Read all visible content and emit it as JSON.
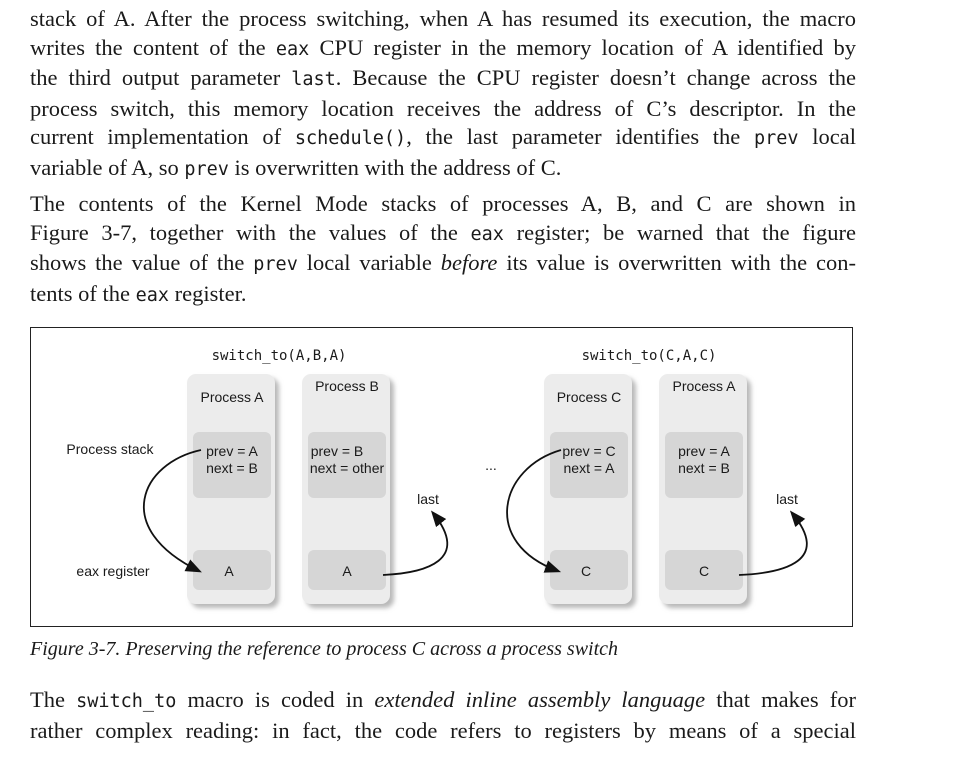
{
  "para1": {
    "l1": [
      "stack of A. After the process switching, when A has resumed its execution, the macro"
    ],
    "l2": [
      "writes the content of the ",
      {
        "c": "eax"
      },
      " CPU register in the memory location of A identified by"
    ],
    "l3": [
      "the third output parameter ",
      {
        "c": "last"
      },
      ". Because the CPU register doesn’t change across the"
    ],
    "l4": [
      "process switch, this memory location receives the address of C’s descriptor. In the"
    ],
    "l5": [
      "current implementation of ",
      {
        "c": "schedule()"
      },
      ", the last parameter identifies the ",
      {
        "c": "prev"
      },
      " local"
    ],
    "l6": [
      "variable of A, so ",
      {
        "c": "prev"
      },
      " is overwritten with the address of C."
    ]
  },
  "para2": {
    "l1": [
      "The contents of the Kernel Mode stacks of processes A, B, and C are shown in"
    ],
    "l2": [
      "Figure 3-7, together with the values of the ",
      {
        "c": "eax"
      },
      " register; be warned that the figure"
    ],
    "l3": [
      "shows the value of the ",
      {
        "c": "prev"
      },
      " local variable ",
      {
        "i": "before"
      },
      " its value is overwritten with the con-"
    ],
    "l4": [
      "tents of the ",
      {
        "c": "eax"
      },
      " register."
    ]
  },
  "figure": {
    "left_call": "switch_to(A,B,A)",
    "right_call": "switch_to(C,A,C)",
    "row_process_stack": "Process stack",
    "row_eax": "eax register",
    "ellipsis": "...",
    "last_label_1": "last",
    "last_label_2": "last",
    "columns": [
      {
        "title": "Process A",
        "prev": "prev = A",
        "next": "next = B",
        "eax": "A"
      },
      {
        "title": "Process B",
        "prev": "prev = B",
        "next": "next = other",
        "eax": "A"
      },
      {
        "title": "Process C",
        "prev": "prev = C",
        "next": "next = A",
        "eax": "C"
      },
      {
        "title": "Process A",
        "prev": "prev = A",
        "next": "next = B",
        "eax": "C"
      }
    ]
  },
  "caption": "Figure 3-7. Preserving the reference to process C across a process switch",
  "para3": {
    "l1": [
      "The ",
      {
        "c": "switch_to"
      },
      " macro is coded in ",
      {
        "i": "extended inline assembly language"
      },
      " that makes for"
    ],
    "l2": [
      "rather complex reading: in fact, the code refers to registers by means of a special"
    ]
  }
}
